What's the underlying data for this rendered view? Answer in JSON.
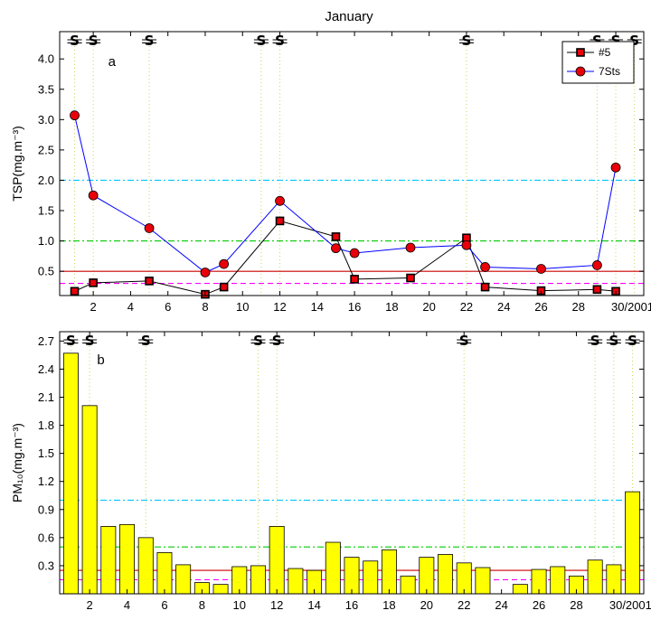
{
  "chart_data": [
    {
      "panel": "a",
      "type": "line",
      "title": "January",
      "ylabel": "TSP(mg.m⁻³)",
      "ylim": [
        0.1,
        4.45
      ],
      "xlim": [
        0.2,
        31.5
      ],
      "x_ticks": [
        2,
        4,
        6,
        8,
        10,
        12,
        14,
        16,
        18,
        20,
        22,
        24,
        26,
        28,
        30
      ],
      "x_tick_labels": [
        "2",
        "4",
        "6",
        "8",
        "10",
        "12",
        "14",
        "16",
        "18",
        "20",
        "22",
        "24",
        "26",
        "28",
        "30/2001"
      ],
      "y_ticks": [
        0.5,
        1.0,
        1.5,
        2.0,
        2.5,
        3.0,
        3.5,
        4.0
      ],
      "y_tick_labels": [
        "0.5",
        "1.0",
        "1.5",
        "2.0",
        "2.5",
        "3.0",
        "3.5",
        "4.0"
      ],
      "series": [
        {
          "name": "#5",
          "color": "#000000",
          "marker": "square",
          "marker_fill": "#e8000b",
          "x": [
            1,
            2,
            5,
            8,
            9,
            12,
            15,
            16,
            19,
            22,
            23,
            26,
            29,
            30
          ],
          "y": [
            0.17,
            0.31,
            0.34,
            0.12,
            0.24,
            1.33,
            1.07,
            0.37,
            0.39,
            1.05,
            0.24,
            0.18,
            0.2,
            0.17
          ]
        },
        {
          "name": "7Sts",
          "color": "#0000ff",
          "marker": "circle",
          "marker_fill": "#e8000b",
          "x": [
            1,
            2,
            5,
            8,
            9,
            12,
            15,
            16,
            19,
            22,
            23,
            26,
            29,
            30
          ],
          "y": [
            3.07,
            1.75,
            1.21,
            0.48,
            0.62,
            1.66,
            0.88,
            0.8,
            0.89,
            0.93,
            0.57,
            0.54,
            0.6,
            2.21
          ]
        }
      ],
      "reference_lines": [
        {
          "y": 2.0,
          "color": "#00c8ff",
          "style": "dashdot"
        },
        {
          "y": 1.0,
          "color": "#00cc00",
          "style": "dashdot"
        },
        {
          "y": 0.5,
          "color": "#cc0000",
          "style": "solid"
        },
        {
          "y": 0.3,
          "color": "#ff00ff",
          "style": "dashed"
        }
      ],
      "weather_symbol_days": [
        1,
        2,
        5,
        11,
        12,
        22,
        29,
        30,
        31
      ],
      "legend": "top-right",
      "grid": false
    },
    {
      "panel": "b",
      "type": "bar",
      "ylabel": "PM₁₀(mg.m⁻³)",
      "ylim": [
        0.0,
        2.8
      ],
      "xlim": [
        0.4,
        31.6
      ],
      "x_ticks": [
        2,
        4,
        6,
        8,
        10,
        12,
        14,
        16,
        18,
        20,
        22,
        24,
        26,
        28,
        30
      ],
      "x_tick_labels": [
        "2",
        "4",
        "6",
        "8",
        "10",
        "12",
        "14",
        "16",
        "18",
        "20",
        "22",
        "24",
        "26",
        "28",
        "30/2001"
      ],
      "y_ticks": [
        0.3,
        0.6,
        0.9,
        1.2,
        1.5,
        1.8,
        2.1,
        2.4,
        2.7
      ],
      "y_tick_labels": [
        "0.3",
        "0.6",
        "0.9",
        "1.2",
        "1.5",
        "1.8",
        "2.1",
        "2.4",
        "2.7"
      ],
      "bar_color": "#ffff00",
      "x": [
        1,
        2,
        3,
        4,
        5,
        6,
        7,
        8,
        9,
        10,
        11,
        12,
        13,
        14,
        15,
        16,
        17,
        18,
        19,
        20,
        21,
        22,
        23,
        24,
        25,
        26,
        27,
        28,
        29,
        30,
        31
      ],
      "values": [
        2.57,
        2.01,
        0.72,
        0.74,
        0.6,
        0.44,
        0.31,
        0.12,
        0.1,
        0.29,
        0.3,
        0.72,
        0.27,
        0.25,
        0.55,
        0.39,
        0.35,
        0.47,
        0.19,
        0.39,
        0.42,
        0.33,
        0.28,
        0.0,
        0.1,
        0.26,
        0.29,
        0.19,
        0.36,
        0.31,
        1.09
      ],
      "reference_lines": [
        {
          "y": 1.0,
          "color": "#00c8ff",
          "style": "dashdot"
        },
        {
          "y": 0.5,
          "color": "#00cc00",
          "style": "dashdot"
        },
        {
          "y": 0.25,
          "color": "#cc0000",
          "style": "solid"
        },
        {
          "y": 0.15,
          "color": "#ff00ff",
          "style": "dashed"
        }
      ],
      "weather_symbol_days": [
        1,
        2,
        5,
        11,
        12,
        22,
        29,
        30,
        31
      ],
      "grid": false
    }
  ],
  "colors": {
    "weather_day_line": "#c8d860",
    "weather_symbol": "#000000"
  },
  "weather_symbol_glyph": "S"
}
